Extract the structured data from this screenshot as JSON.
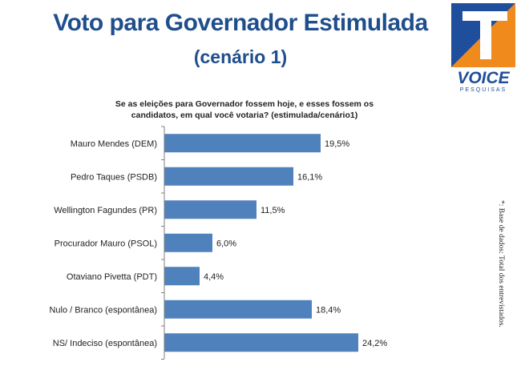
{
  "header": {
    "title": "Voto para Governador Estimulada",
    "subtitle": "(cenário 1)"
  },
  "question": {
    "line1": "Se as eleições para Governador fossem hoje, e esses fossem os",
    "line2": "candidatos, em qual você votaria? (estimulada/cenário1)"
  },
  "logo": {
    "brand": "VOICE",
    "tagline": "PESQUISAS",
    "colors": {
      "blue": "#1f4e9c",
      "orange": "#f08a1c"
    }
  },
  "footnote": "*: Base de dados: Total dos   entrevistados.",
  "colors": {
    "bar": "#4f81bd",
    "title": "#1f4e8c"
  },
  "chart_data": {
    "type": "bar",
    "orientation": "horizontal",
    "categories": [
      "Mauro Mendes (DEM)",
      "Pedro Taques (PSDB)",
      "Wellington Fagundes (PR)",
      "Procurador Mauro (PSOL)",
      "Otaviano Pivetta (PDT)",
      "Nulo / Branco (espontânea)",
      "NS/ Indeciso (espontânea)"
    ],
    "values": [
      19.5,
      16.1,
      11.5,
      6.0,
      4.4,
      18.4,
      24.2
    ],
    "value_labels": [
      "19,5%",
      "16,1%",
      "11,5%",
      "6,0%",
      "4,4%",
      "18,4%",
      "24,2%"
    ],
    "xlim": [
      0,
      24.2
    ],
    "grid": false
  }
}
